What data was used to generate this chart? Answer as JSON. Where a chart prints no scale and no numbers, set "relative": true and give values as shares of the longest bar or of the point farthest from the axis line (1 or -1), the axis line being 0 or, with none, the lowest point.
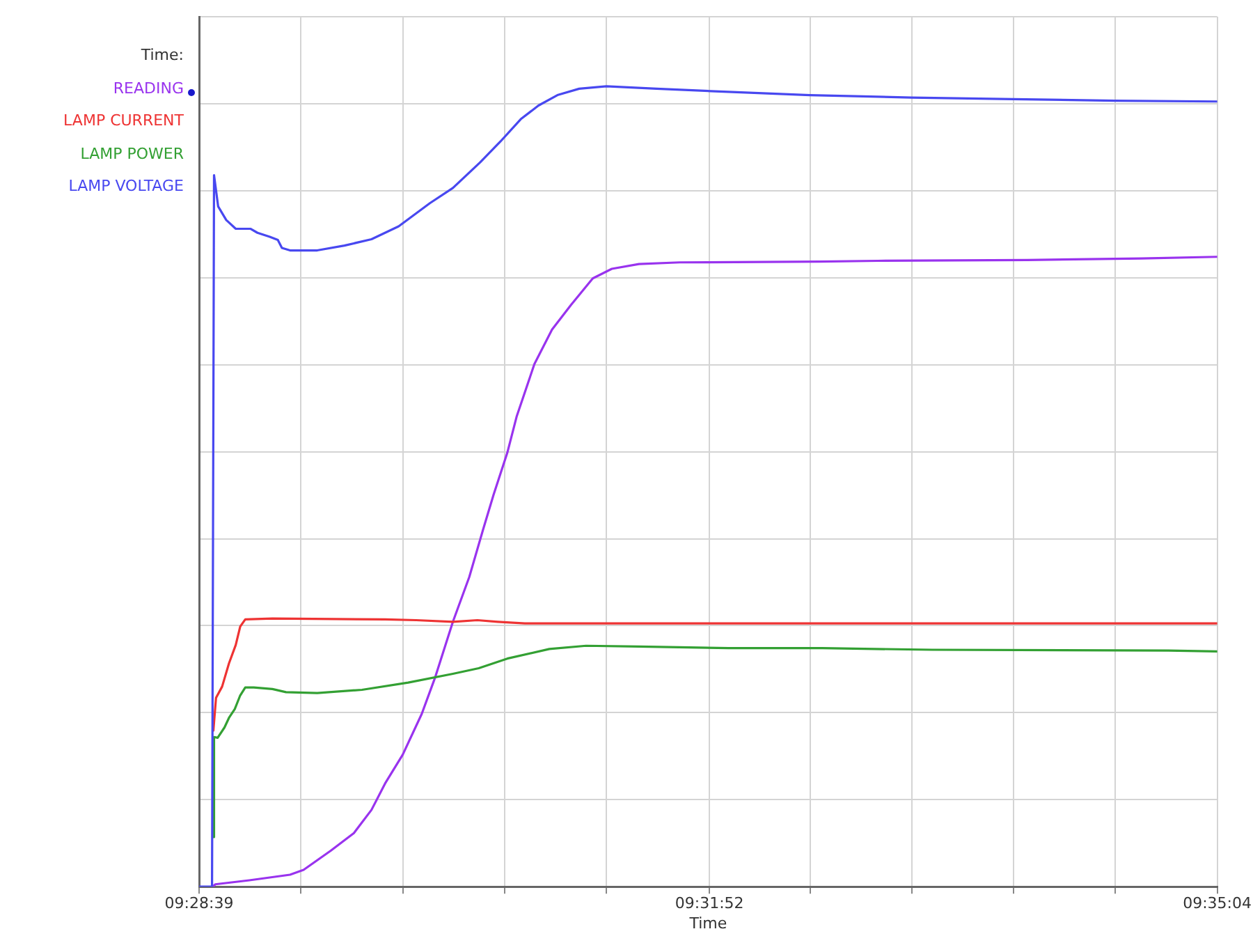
{
  "chart_data": {
    "type": "line",
    "relative": true,
    "xlabel": "Time",
    "legend_title": "Time:",
    "legend": "left",
    "grid": true,
    "xlim": [
      9.4775,
      9.58444
    ],
    "xticks": [
      {
        "value": 9.4775,
        "label": "09:28:39"
      },
      {
        "value": 9.48819,
        "label": null
      },
      {
        "value": 9.49889,
        "label": null
      },
      {
        "value": 9.50958,
        "label": null
      },
      {
        "value": 9.52028,
        "label": null
      },
      {
        "value": 9.53111,
        "label": "09:31:52"
      },
      {
        "value": 9.54167,
        "label": null
      },
      {
        "value": 9.55236,
        "label": null
      },
      {
        "value": 9.56306,
        "label": null
      },
      {
        "value": 9.57375,
        "label": null
      },
      {
        "value": 9.58444,
        "label": "09:35:04"
      }
    ],
    "series": [
      {
        "name": "READING",
        "color": "#9933ee",
        "x": [
          9.47893,
          9.47921,
          9.48278,
          9.48705,
          9.48848,
          9.49133,
          9.49376,
          9.49561,
          9.49704,
          9.49889,
          9.50089,
          9.50231,
          9.50416,
          9.50588,
          9.5073,
          9.50844,
          9.50987,
          9.51087,
          9.51272,
          9.51457,
          9.51657,
          9.51885,
          9.52085,
          9.5237,
          9.52798,
          9.54266,
          9.5488,
          9.56448,
          9.57646,
          9.58444
        ],
        "values": [
          0,
          0.003,
          0.008,
          0.015,
          0.021,
          0.045,
          0.067,
          0.096,
          0.129,
          0.165,
          0.216,
          0.262,
          0.331,
          0.387,
          0.445,
          0.49,
          0.542,
          0.588,
          0.653,
          0.696,
          0.727,
          0.76,
          0.772,
          0.778,
          0.78,
          0.781,
          0.782,
          0.783,
          0.785,
          0.787
        ]
      },
      {
        "name": "LAMP CURRENT",
        "color": "#ee3333",
        "x": [
          9.479,
          9.47928,
          9.47992,
          9.48064,
          9.48135,
          9.48182,
          9.48235,
          9.4852,
          9.49704,
          9.50031,
          9.50416,
          9.50673,
          9.50887,
          9.51172,
          9.52128,
          9.58444
        ],
        "values": [
          0.195,
          0.236,
          0.25,
          0.279,
          0.302,
          0.325,
          0.334,
          0.335,
          0.334,
          0.333,
          0.331,
          0.333,
          0.331,
          0.329,
          0.329,
          0.329
        ]
      },
      {
        "name": "LAMP POWER",
        "color": "#33a033",
        "x": [
          9.479,
          9.47907,
          9.47945,
          9.48017,
          9.48064,
          9.48125,
          9.48182,
          9.48235,
          9.48325,
          9.4852,
          9.48663,
          9.48991,
          9.49461,
          9.49946,
          9.50416,
          9.50687,
          9.50987,
          9.51429,
          9.51814,
          9.5237,
          9.53311,
          9.54295,
          9.5545,
          9.57931,
          9.58444
        ],
        "values": [
          0.062,
          0.187,
          0.186,
          0.199,
          0.211,
          0.222,
          0.239,
          0.249,
          0.249,
          0.247,
          0.243,
          0.242,
          0.246,
          0.255,
          0.266,
          0.273,
          0.285,
          0.297,
          0.301,
          0.3,
          0.298,
          0.298,
          0.296,
          0.295,
          0.294
        ]
      },
      {
        "name": "LAMP VOLTAGE",
        "color": "#4848f0",
        "x": [
          9.4775,
          9.47886,
          9.47907,
          9.4795,
          9.48035,
          9.48135,
          9.48292,
          9.48363,
          9.48492,
          9.48577,
          9.4862,
          9.48705,
          9.48991,
          9.49276,
          9.49561,
          9.49846,
          9.50174,
          9.50416,
          9.50702,
          9.50915,
          9.51129,
          9.51315,
          9.51514,
          9.51743,
          9.52028,
          9.52555,
          9.53126,
          9.54167,
          9.55236,
          9.56305,
          9.57375,
          9.58444
        ],
        "values": [
          0,
          0,
          0.889,
          0.85,
          0.833,
          0.822,
          0.822,
          0.817,
          0.812,
          0.808,
          0.798,
          0.795,
          0.795,
          0.801,
          0.809,
          0.825,
          0.854,
          0.873,
          0.905,
          0.931,
          0.959,
          0.976,
          0.989,
          0.997,
          1,
          0.997,
          0.994,
          0.989,
          0.986,
          0.984,
          0.982,
          0.981
        ]
      }
    ]
  }
}
